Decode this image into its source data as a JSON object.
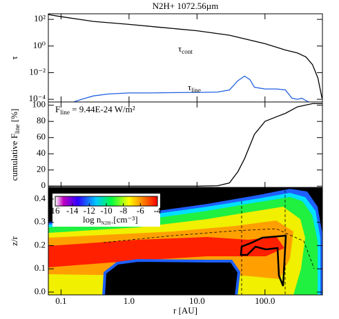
{
  "chart_data": [
    {
      "type": "line",
      "title": "N2H+ 1072.56µm",
      "yscale": "log",
      "ylabel": "τ",
      "xlim": [
        0.065,
        700
      ],
      "ylim": [
        6.3e-05,
        263
      ],
      "yticks": [
        {
          "value": 100,
          "label": "10²"
        },
        {
          "value": 1,
          "label": "10⁰"
        },
        {
          "value": 0.01,
          "label": "10⁻²"
        },
        {
          "value": 0.0001,
          "label": "10⁻⁴"
        }
      ],
      "annotations": [
        {
          "text": "τ",
          "sub": "cont"
        },
        {
          "text": "τ",
          "sub": "line"
        }
      ],
      "series": [
        {
          "color": "#000000",
          "x": [
            0.065,
            0.1,
            0.3,
            1,
            3,
            10,
            30,
            100,
            200,
            300,
            400,
            500,
            600,
            690
          ],
          "values": [
            230,
            160,
            70,
            42,
            25,
            14,
            6.5,
            1.5,
            0.5,
            0.3,
            0.15,
            0.04,
            0.004,
            0.00012
          ]
        },
        {
          "color": "#1f5fe0",
          "x": [
            0.15,
            0.2,
            0.3,
            0.5,
            1,
            2,
            5,
            10,
            20,
            30,
            40,
            50,
            60,
            70,
            100,
            150,
            200,
            250,
            300,
            350,
            400,
            450
          ],
          "values": [
            6e-05,
            0.0001,
            0.00018,
            0.00025,
            0.0003,
            0.0003,
            0.00032,
            0.00033,
            0.00035,
            0.0005,
            0.0025,
            0.0055,
            0.003,
            0.0008,
            0.0006,
            0.0006,
            0.0005,
            0.00012,
            0.0001,
            0.00012,
            8e-05,
            6e-05
          ]
        }
      ]
    },
    {
      "type": "line",
      "ylabel": {
        "text": "cumulative F",
        "sub": "line",
        "rest": " [%]"
      },
      "xlim": [
        0.065,
        700
      ],
      "ylim": [
        -1.5,
        104
      ],
      "yticks": [
        0,
        20,
        40,
        60,
        80,
        100
      ],
      "annotations": [
        {
          "text": "F",
          "sub": "line",
          "rest": " = 9.44E-24 W/m²"
        }
      ],
      "color": "#000000",
      "x": [
        0.065,
        10,
        20,
        30,
        40,
        50,
        70,
        100,
        150,
        200,
        300,
        500,
        690
      ],
      "values": [
        0,
        0,
        0.5,
        4,
        18,
        34,
        64,
        80,
        86,
        90,
        98,
        102,
        102
      ]
    },
    {
      "type": "heatmap",
      "ylabel": "z/r",
      "xlabel": "r [AU]",
      "xlim": [
        0.065,
        700
      ],
      "ylim": [
        -0.012,
        0.45
      ],
      "xticks": [
        0.1,
        {
          "value": 1,
          "label": "1.0"
        },
        {
          "value": 10,
          "label": "10.0"
        },
        {
          "value": 100,
          "label": "100.0"
        }
      ],
      "yticks": [
        {
          "value": 0,
          "label": "0.0"
        },
        0.1,
        0.2,
        0.3,
        0.4
      ],
      "colorbar": {
        "lim": [
          -16,
          -4
        ],
        "ticks": [
          {
            "value": -16,
            "label": "16"
          },
          -14,
          -12,
          -10,
          -8,
          -6,
          -4
        ],
        "label": {
          "text": "log n",
          "sub": "N2H+",
          "rest": "[cm⁻³]"
        }
      }
    }
  ]
}
